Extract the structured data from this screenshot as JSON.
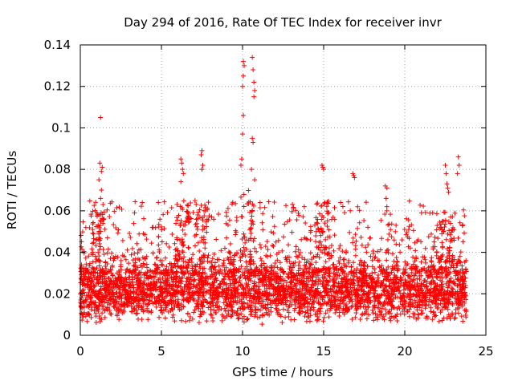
{
  "chart_data": {
    "type": "scatter",
    "title": "Day 294 of 2016, Rate Of TEC Index for receiver invr",
    "xlabel": "GPS time / hours",
    "ylabel": "ROTI / TECUs",
    "xlim": [
      0,
      25
    ],
    "ylim": [
      0,
      0.14
    ],
    "x_ticks": [
      0,
      5,
      10,
      15,
      20,
      25
    ],
    "x_tick_labels": [
      "0",
      "5",
      "10",
      "15",
      "20",
      "25"
    ],
    "y_ticks": [
      0,
      0.02,
      0.04,
      0.06,
      0.08,
      0.1,
      0.12,
      0.14
    ],
    "y_tick_labels": [
      "0",
      "0.02",
      "0.04",
      "0.06",
      "0.08",
      "0.1",
      "0.12",
      "0.14"
    ],
    "grid": true,
    "marker": "+",
    "marker_color": "#ff0000",
    "series": [
      {
        "name": "ROTI",
        "x_range": [
          0,
          23.8
        ],
        "dense_band": [
          0.005,
          0.035
        ],
        "points": [
          [
            1.25,
            0.105
          ],
          [
            1.2,
            0.083
          ],
          [
            1.35,
            0.081
          ],
          [
            1.3,
            0.079
          ],
          [
            1.15,
            0.075
          ],
          [
            1.3,
            0.07
          ],
          [
            1.25,
            0.066
          ],
          [
            6.2,
            0.085
          ],
          [
            6.25,
            0.083
          ],
          [
            6.3,
            0.08
          ],
          [
            6.35,
            0.078
          ],
          [
            6.2,
            0.074
          ],
          [
            7.5,
            0.089
          ],
          [
            7.45,
            0.087
          ],
          [
            7.55,
            0.082
          ],
          [
            7.5,
            0.08
          ],
          [
            9.9,
            0.082
          ],
          [
            9.95,
            0.085
          ],
          [
            10.0,
            0.097
          ],
          [
            10.05,
            0.106
          ],
          [
            10.0,
            0.12
          ],
          [
            10.05,
            0.125
          ],
          [
            10.1,
            0.13
          ],
          [
            10.05,
            0.132
          ],
          [
            10.6,
            0.134
          ],
          [
            10.65,
            0.128
          ],
          [
            10.7,
            0.122
          ],
          [
            10.75,
            0.118
          ],
          [
            10.7,
            0.115
          ],
          [
            10.6,
            0.095
          ],
          [
            10.65,
            0.093
          ],
          [
            10.55,
            0.08
          ],
          [
            10.75,
            0.075
          ],
          [
            14.9,
            0.082
          ],
          [
            14.95,
            0.081
          ],
          [
            15.0,
            0.08
          ],
          [
            16.8,
            0.078
          ],
          [
            16.85,
            0.077
          ],
          [
            16.9,
            0.076
          ],
          [
            18.8,
            0.072
          ],
          [
            18.9,
            0.071
          ],
          [
            18.85,
            0.066
          ],
          [
            18.9,
            0.06
          ],
          [
            22.5,
            0.082
          ],
          [
            22.55,
            0.078
          ],
          [
            22.6,
            0.073
          ],
          [
            22.65,
            0.071
          ],
          [
            22.7,
            0.069
          ],
          [
            23.3,
            0.086
          ],
          [
            23.35,
            0.082
          ],
          [
            23.25,
            0.078
          ]
        ]
      }
    ]
  }
}
